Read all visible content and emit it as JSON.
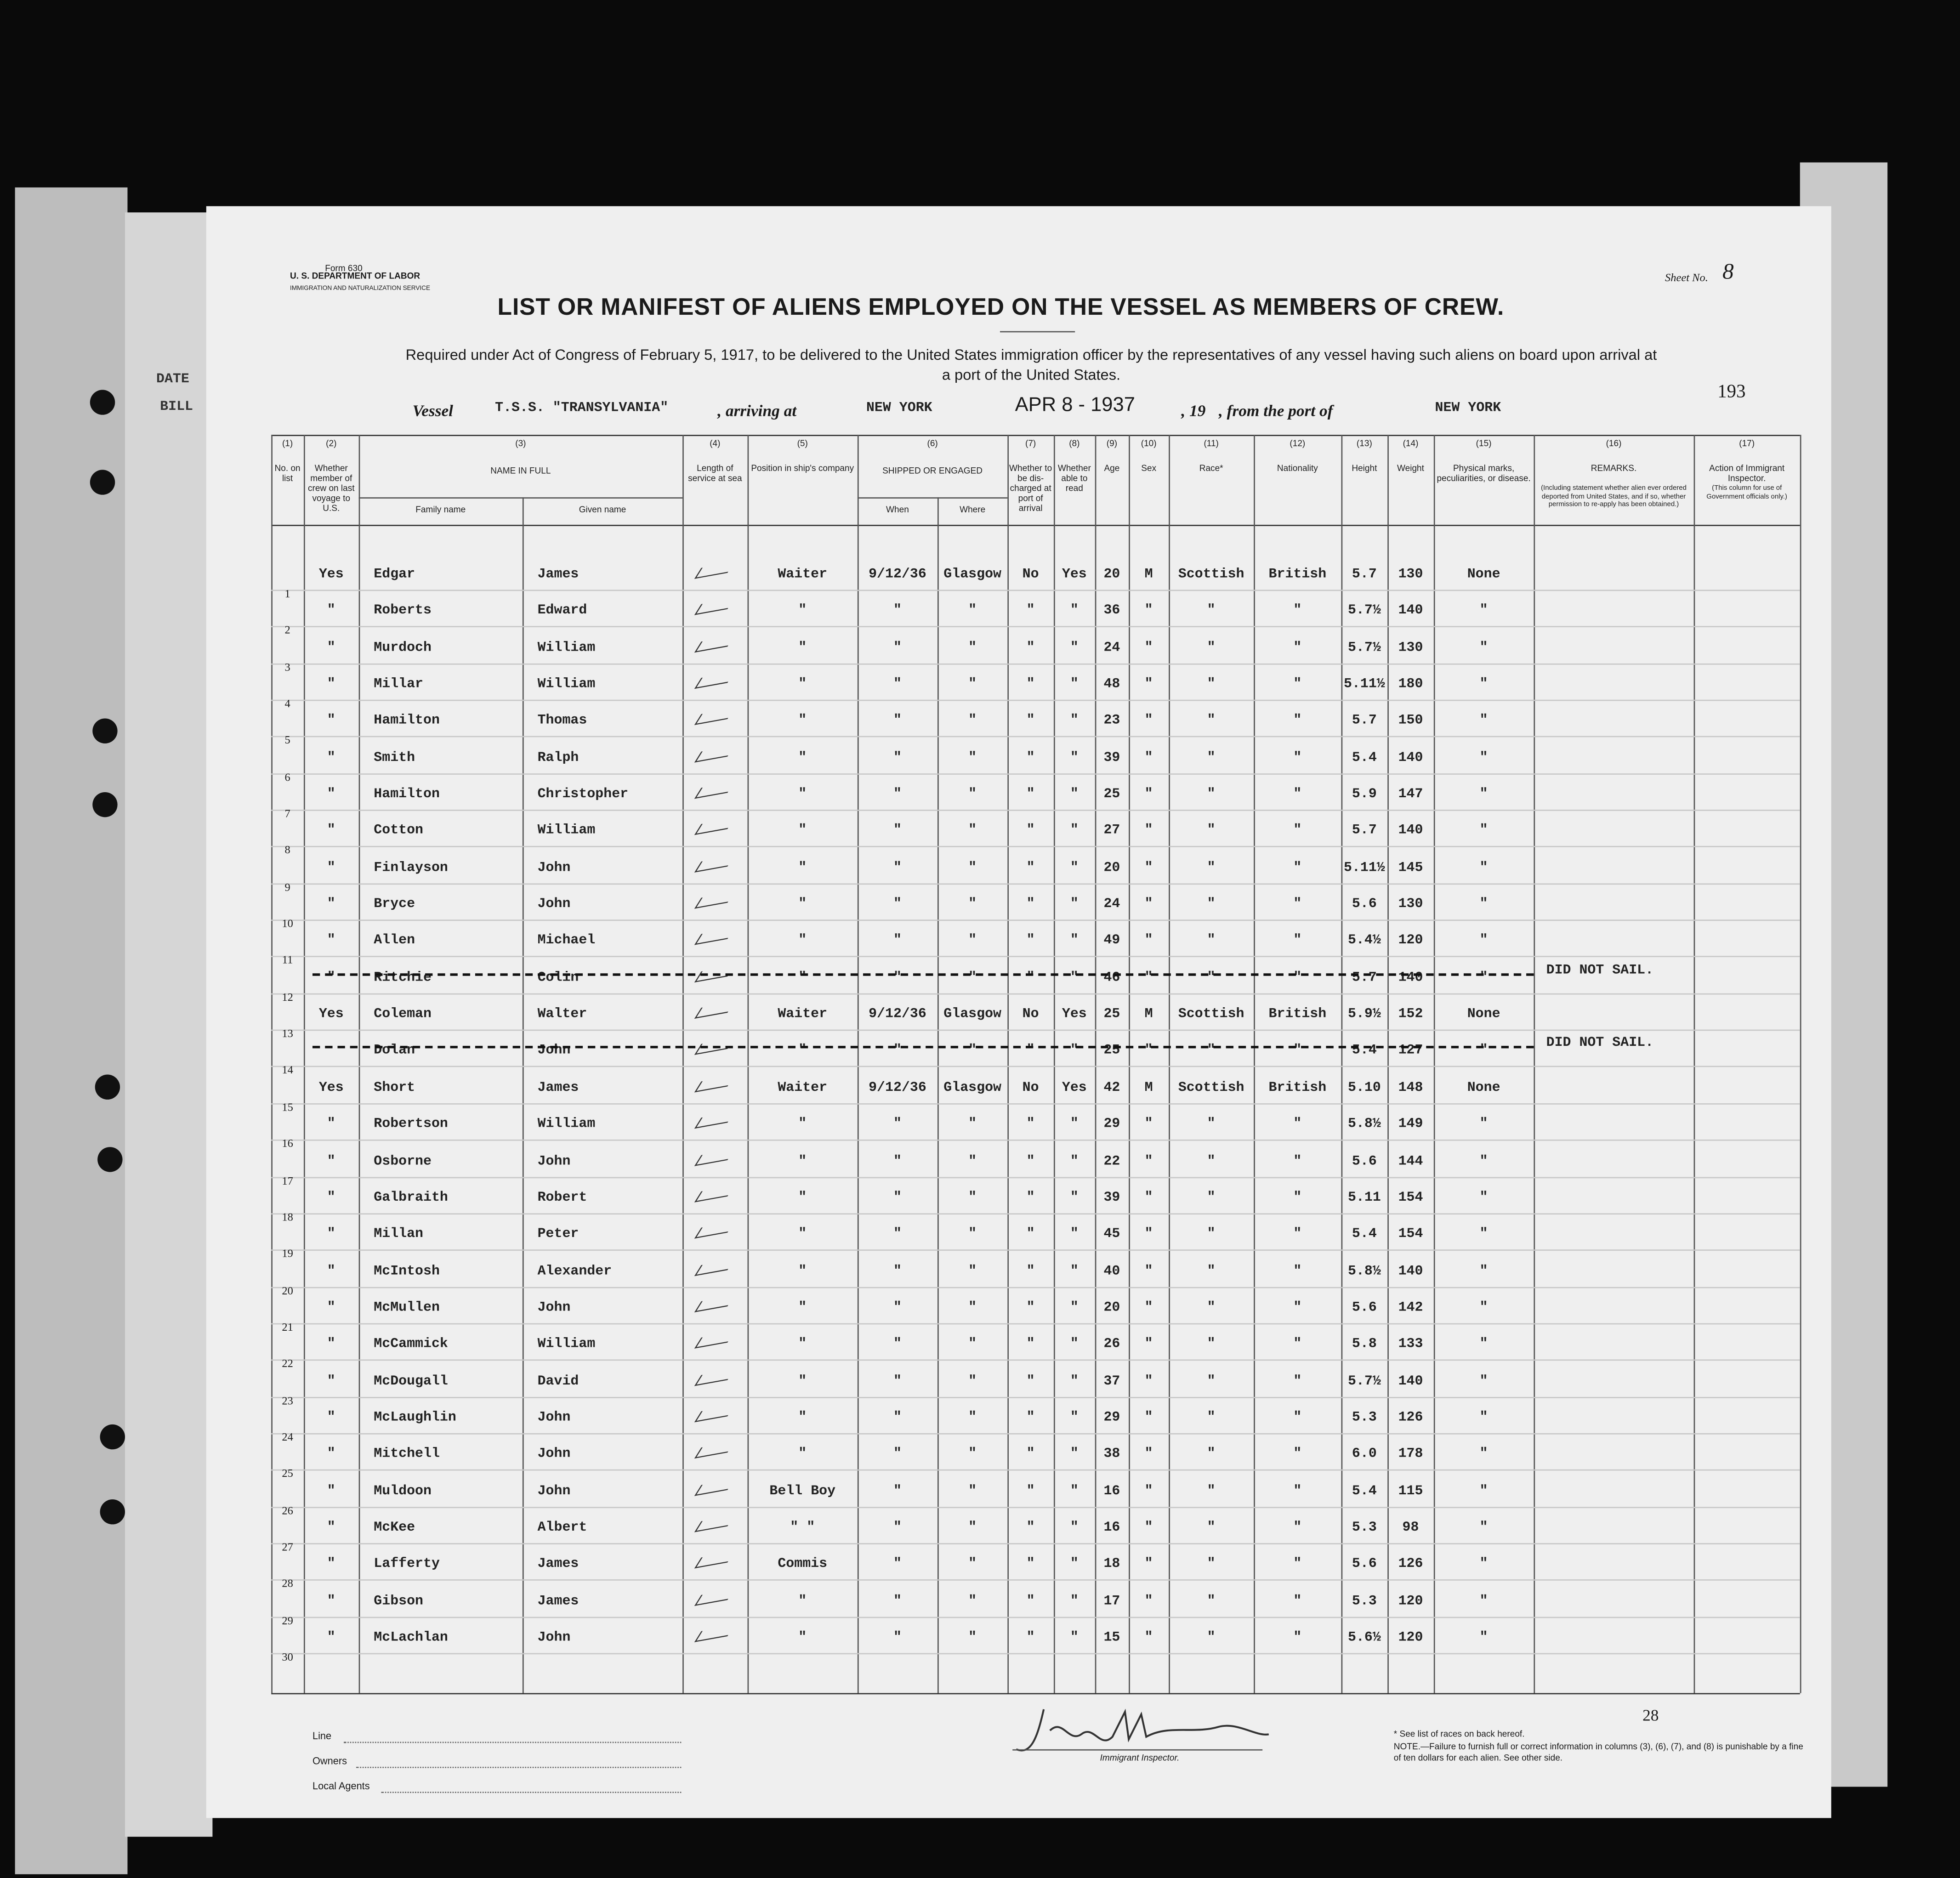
{
  "side": {
    "date": "DATE",
    "bill": "BILL"
  },
  "header": {
    "form": "Form 630",
    "department": "U. S. DEPARTMENT OF LABOR",
    "service": "IMMIGRATION AND NATURALIZATION SERVICE",
    "sheet_label": "Sheet No.",
    "sheet_no": "8",
    "title": "LIST OR MANIFEST OF ALIENS EMPLOYED ON THE VESSEL AS MEMBERS OF CREW.",
    "subtitle": "Required under Act of Congress of February 5, 1917, to be delivered to the United States immigration officer by the representatives of any vessel having such aliens on board upon arrival at a port of the United States.",
    "page_no": "193"
  },
  "vessel": {
    "vessel_label": "Vessel",
    "vessel": "T.S.S. \"TRANSYLVANIA\"",
    "arriving_label": ", arriving at",
    "arriving": "NEW YORK",
    "date": "APR 8 - 1937",
    "year_label": ", 19",
    "from_label": ", from the port of",
    "from": "NEW YORK"
  },
  "table": {
    "columns": [
      {
        "num": "(1)",
        "label": "No. on list"
      },
      {
        "num": "(2)",
        "label": "Whether member of crew on last voyage to U.S."
      },
      {
        "num": "(3)",
        "label": "NAME IN FULL",
        "sub": [
          "Family name",
          "Given name"
        ]
      },
      {
        "num": "(4)",
        "label": "Length of service at sea"
      },
      {
        "num": "(5)",
        "label": "Position in ship's company"
      },
      {
        "num": "(6)",
        "label": "SHIPPED OR ENGAGED",
        "sub": [
          "When",
          "Where"
        ]
      },
      {
        "num": "(7)",
        "label": "Whether to be dis-charged at port of arrival"
      },
      {
        "num": "(8)",
        "label": "Whether able to read"
      },
      {
        "num": "(9)",
        "label": "Age"
      },
      {
        "num": "(10)",
        "label": "Sex"
      },
      {
        "num": "(11)",
        "label": "Race*"
      },
      {
        "num": "(12)",
        "label": "Nationality"
      },
      {
        "num": "(13)",
        "label": "Height"
      },
      {
        "num": "(14)",
        "label": "Weight"
      },
      {
        "num": "(15)",
        "label": "Physical marks, peculiarities, or disease."
      },
      {
        "num": "(16)",
        "label": "REMARKS.",
        "note": "(Including statement whether alien ever ordered deported from United States, and if so, whether permission to re-apply has been obtained.)"
      },
      {
        "num": "(17)",
        "label": "Action of Immigrant Inspector.",
        "note": "(This column for use of Government officials only.)"
      }
    ],
    "rows": [
      [
        "1",
        "Yes",
        "Edgar",
        "James",
        "Waiter",
        "9/12/36",
        "Glasgow",
        "No",
        "Yes",
        "20",
        "M",
        "Scottish",
        "British",
        "5.7",
        "130",
        "None",
        null
      ],
      [
        "2",
        "\"",
        "Roberts",
        "Edward",
        "\"",
        "\"",
        "\"",
        "\"",
        "\"",
        "36",
        "\"",
        "\"",
        "\"",
        "5.7½",
        "140",
        "\"",
        null
      ],
      [
        "3",
        "\"",
        "Murdoch",
        "William",
        "\"",
        "\"",
        "\"",
        "\"",
        "\"",
        "24",
        "\"",
        "\"",
        "\"",
        "5.7½",
        "130",
        "\"",
        null
      ],
      [
        "4",
        "\"",
        "Millar",
        "William",
        "\"",
        "\"",
        "\"",
        "\"",
        "\"",
        "48",
        "\"",
        "\"",
        "\"",
        "5.11½",
        "180",
        "\"",
        null
      ],
      [
        "5",
        "\"",
        "Hamilton",
        "Thomas",
        "\"",
        "\"",
        "\"",
        "\"",
        "\"",
        "23",
        "\"",
        "\"",
        "\"",
        "5.7",
        "150",
        "\"",
        null
      ],
      [
        "6",
        "\"",
        "Smith",
        "Ralph",
        "\"",
        "\"",
        "\"",
        "\"",
        "\"",
        "39",
        "\"",
        "\"",
        "\"",
        "5.4",
        "140",
        "\"",
        null
      ],
      [
        "7",
        "\"",
        "Hamilton",
        "Christopher",
        "\"",
        "\"",
        "\"",
        "\"",
        "\"",
        "25",
        "\"",
        "\"",
        "\"",
        "5.9",
        "147",
        "\"",
        null
      ],
      [
        "8",
        "\"",
        "Cotton",
        "William",
        "\"",
        "\"",
        "\"",
        "\"",
        "\"",
        "27",
        "\"",
        "\"",
        "\"",
        "5.7",
        "140",
        "\"",
        null
      ],
      [
        "9",
        "\"",
        "Finlayson",
        "John",
        "\"",
        "\"",
        "\"",
        "\"",
        "\"",
        "20",
        "\"",
        "\"",
        "\"",
        "5.11½",
        "145",
        "\"",
        null
      ],
      [
        "10",
        "\"",
        "Bryce",
        "John",
        "\"",
        "\"",
        "\"",
        "\"",
        "\"",
        "24",
        "\"",
        "\"",
        "\"",
        "5.6",
        "130",
        "\"",
        null
      ],
      [
        "11",
        "\"",
        "Allen",
        "Michael",
        "\"",
        "\"",
        "\"",
        "\"",
        "\"",
        "49",
        "\"",
        "\"",
        "\"",
        "5.4½",
        "120",
        "\"",
        null
      ],
      [
        "12",
        "\"",
        "Ritchie",
        "Colin",
        "\"",
        "\"",
        "\"",
        "\"",
        "\"",
        "46",
        "\"",
        "\"",
        "\"",
        "5.7",
        "140",
        "\"",
        "DID NOT SAIL."
      ],
      [
        "13",
        "Yes",
        "Coleman",
        "Walter",
        "Waiter",
        "9/12/36",
        "Glasgow",
        "No",
        "Yes",
        "25",
        "M",
        "Scottish",
        "British",
        "5.9½",
        "152",
        "None",
        null
      ],
      [
        "14",
        null,
        "Dolan",
        "John",
        "\"",
        "\"",
        "\"",
        "\"",
        "\"",
        "25",
        "\"",
        "\"",
        "\"",
        "5.4",
        "127",
        "\"",
        "DID NOT SAIL."
      ],
      [
        "15",
        "Yes",
        "Short",
        "James",
        "Waiter",
        "9/12/36",
        "Glasgow",
        "No",
        "Yes",
        "42",
        "M",
        "Scottish",
        "British",
        "5.10",
        "148",
        "None",
        null
      ],
      [
        "16",
        "\"",
        "Robertson",
        "William",
        "\"",
        "\"",
        "\"",
        "\"",
        "\"",
        "29",
        "\"",
        "\"",
        "\"",
        "5.8½",
        "149",
        "\"",
        null
      ],
      [
        "17",
        "\"",
        "Osborne",
        "John",
        "\"",
        "\"",
        "\"",
        "\"",
        "\"",
        "22",
        "\"",
        "\"",
        "\"",
        "5.6",
        "144",
        "\"",
        null
      ],
      [
        "18",
        "\"",
        "Galbraith",
        "Robert",
        "\"",
        "\"",
        "\"",
        "\"",
        "\"",
        "39",
        "\"",
        "\"",
        "\"",
        "5.11",
        "154",
        "\"",
        null
      ],
      [
        "19",
        "\"",
        "Millan",
        "Peter",
        "\"",
        "\"",
        "\"",
        "\"",
        "\"",
        "45",
        "\"",
        "\"",
        "\"",
        "5.4",
        "154",
        "\"",
        null
      ],
      [
        "20",
        "\"",
        "McIntosh",
        "Alexander",
        "\"",
        "\"",
        "\"",
        "\"",
        "\"",
        "40",
        "\"",
        "\"",
        "\"",
        "5.8½",
        "140",
        "\"",
        null
      ],
      [
        "21",
        "\"",
        "McMullen",
        "John",
        "\"",
        "\"",
        "\"",
        "\"",
        "\"",
        "20",
        "\"",
        "\"",
        "\"",
        "5.6",
        "142",
        "\"",
        null
      ],
      [
        "22",
        "\"",
        "McCammick",
        "William",
        "\"",
        "\"",
        "\"",
        "\"",
        "\"",
        "26",
        "\"",
        "\"",
        "\"",
        "5.8",
        "133",
        "\"",
        null
      ],
      [
        "23",
        "\"",
        "McDougall",
        "David",
        "\"",
        "\"",
        "\"",
        "\"",
        "\"",
        "37",
        "\"",
        "\"",
        "\"",
        "5.7½",
        "140",
        "\"",
        null
      ],
      [
        "24",
        "\"",
        "McLaughlin",
        "John",
        "\"",
        "\"",
        "\"",
        "\"",
        "\"",
        "29",
        "\"",
        "\"",
        "\"",
        "5.3",
        "126",
        "\"",
        null
      ],
      [
        "25",
        "\"",
        "Mitchell",
        "John",
        "\"",
        "\"",
        "\"",
        "\"",
        "\"",
        "38",
        "\"",
        "\"",
        "\"",
        "6.0",
        "178",
        "\"",
        null
      ],
      [
        "26",
        "\"",
        "Muldoon",
        "John",
        "Bell Boy",
        "\"",
        "\"",
        "\"",
        "\"",
        "16",
        "\"",
        "\"",
        "\"",
        "5.4",
        "115",
        "\"",
        null
      ],
      [
        "27",
        "\"",
        "McKee",
        "Albert",
        "\" \"",
        "\"",
        "\"",
        "\"",
        "\"",
        "16",
        "\"",
        "\"",
        "\"",
        "5.3",
        "98",
        "\"",
        null
      ],
      [
        "28",
        "\"",
        "Lafferty",
        "James",
        "Commis",
        "\"",
        "\"",
        "\"",
        "\"",
        "18",
        "\"",
        "\"",
        "\"",
        "5.6",
        "126",
        "\"",
        null
      ],
      [
        "29",
        "\"",
        "Gibson",
        "James",
        "\"",
        "\"",
        "\"",
        "\"",
        "\"",
        "17",
        "\"",
        "\"",
        "\"",
        "5.3",
        "120",
        "\"",
        null
      ],
      [
        "30",
        "\"",
        "McLachlan",
        "John",
        "\"",
        "\"",
        "\"",
        "\"",
        "\"",
        "15",
        "\"",
        "\"",
        "\"",
        "5.6½",
        "120",
        "\"",
        null
      ]
    ]
  },
  "footer": {
    "line": "Line",
    "owners": "Owners",
    "agents": "Local Agents",
    "inspector": "Immigrant Inspector.",
    "races_note": "* See list of races on back hereof.",
    "note": "NOTE.—Failure to furnish full or correct information in columns (3), (6), (7), and (8) is punishable by a fine of ten dollars for each alien. See other side.",
    "count": "28"
  }
}
